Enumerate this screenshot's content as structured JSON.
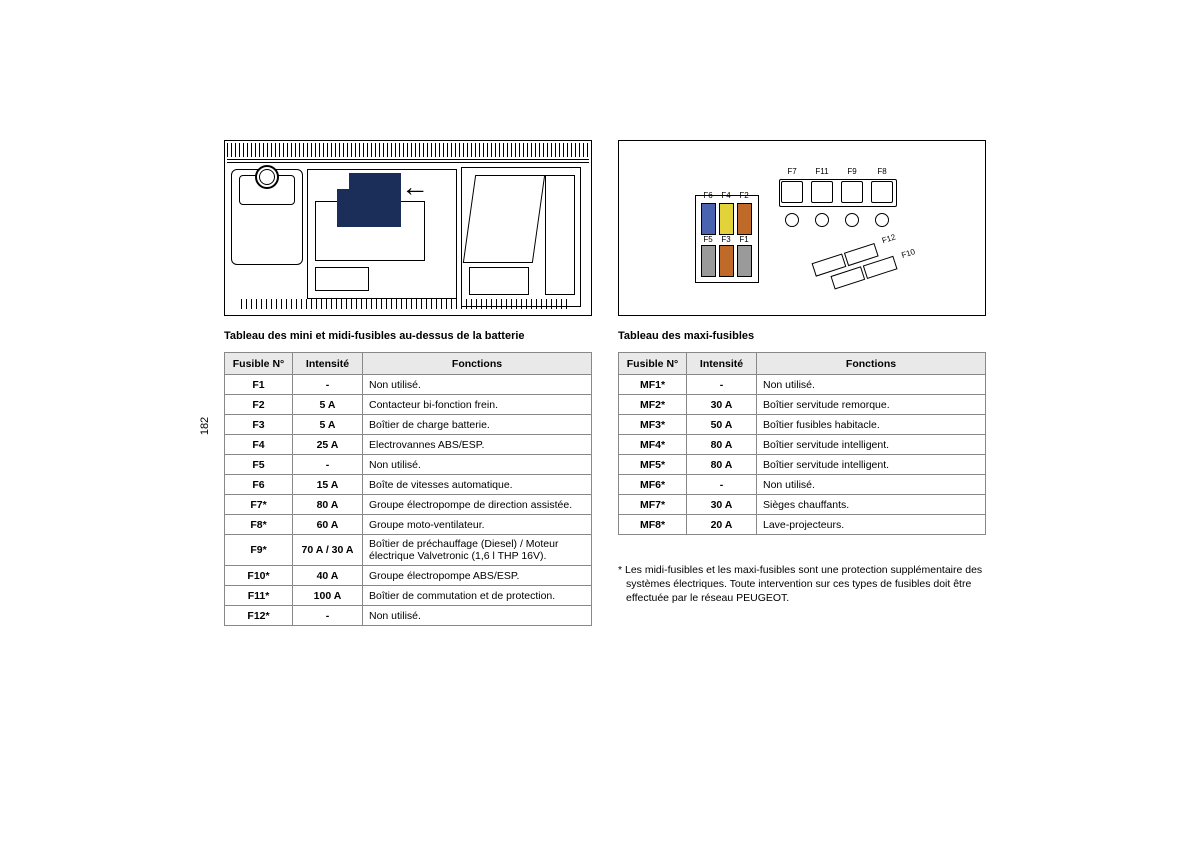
{
  "page_number": "182",
  "left": {
    "title": "Tableau des mini et midi-fusibles au-dessus de la batterie",
    "headers": {
      "fuse": "Fusible N°",
      "intensity": "Intensité",
      "fn": "Fonctions"
    },
    "rows": [
      {
        "fuse": "F1",
        "int": "-",
        "fn": "Non utilisé."
      },
      {
        "fuse": "F2",
        "int": "5 A",
        "fn": "Contacteur bi-fonction frein."
      },
      {
        "fuse": "F3",
        "int": "5 A",
        "fn": "Boîtier de charge batterie."
      },
      {
        "fuse": "F4",
        "int": "25 A",
        "fn": "Electrovannes ABS/ESP."
      },
      {
        "fuse": "F5",
        "int": "-",
        "fn": "Non utilisé."
      },
      {
        "fuse": "F6",
        "int": "15 A",
        "fn": "Boîte de vitesses automatique."
      },
      {
        "fuse": "F7*",
        "int": "80 A",
        "fn": "Groupe électropompe de direction assistée."
      },
      {
        "fuse": "F8*",
        "int": "60 A",
        "fn": "Groupe moto-ventilateur."
      },
      {
        "fuse": "F9*",
        "int": "70 A / 30 A",
        "fn": "Boîtier de préchauffage (Diesel) / Moteur électrique Valvetronic (1,6 l THP 16V)."
      },
      {
        "fuse": "F10*",
        "int": "40 A",
        "fn": "Groupe électropompe ABS/ESP."
      },
      {
        "fuse": "F11*",
        "int": "100 A",
        "fn": "Boîtier de commutation et de protection."
      },
      {
        "fuse": "F12*",
        "int": "-",
        "fn": "Non utilisé."
      }
    ]
  },
  "right": {
    "title": "Tableau des maxi-fusibles",
    "headers": {
      "fuse": "Fusible N°",
      "intensity": "Intensité",
      "fn": "Fonctions"
    },
    "rows": [
      {
        "fuse": "MF1*",
        "int": "-",
        "fn": "Non utilisé."
      },
      {
        "fuse": "MF2*",
        "int": "30 A",
        "fn": "Boîtier servitude remorque."
      },
      {
        "fuse": "MF3*",
        "int": "50 A",
        "fn": "Boîtier fusibles habitacle."
      },
      {
        "fuse": "MF4*",
        "int": "80 A",
        "fn": "Boîtier servitude intelligent."
      },
      {
        "fuse": "MF5*",
        "int": "80 A",
        "fn": "Boîtier servitude intelligent."
      },
      {
        "fuse": "MF6*",
        "int": "-",
        "fn": "Non utilisé."
      },
      {
        "fuse": "MF7*",
        "int": "30 A",
        "fn": "Sièges chauffants."
      },
      {
        "fuse": "MF8*",
        "int": "20 A",
        "fn": "Lave-projecteurs."
      }
    ]
  },
  "footnote": "*  Les midi-fusibles et les maxi-fusibles sont une protection supplémentaire des systèmes électriques. Toute intervention sur ces types de fusibles doit être effectuée par le réseau PEUGEOT.",
  "diagram_right": {
    "mini_labels_top": [
      "F6",
      "F4",
      "F2"
    ],
    "mini_labels_bot": [
      "F5",
      "F3",
      "F1"
    ],
    "midi_labels": [
      "F7",
      "F11",
      "F9",
      "F8"
    ],
    "maxi_labels": [
      "F12",
      "F10"
    ],
    "mini_colors": {
      "F6": "#4a63b0",
      "F4": "#e3d33a",
      "F2": "#c06a2a",
      "F5": "#9a9a9a",
      "F3": "#c06a2a",
      "F1": "#9a9a9a"
    }
  }
}
